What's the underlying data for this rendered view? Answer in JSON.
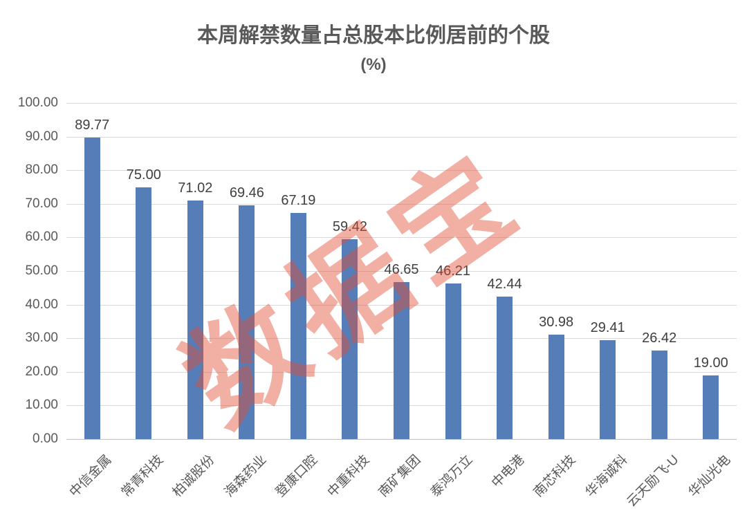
{
  "chart_data": {
    "type": "bar",
    "title": "本周解禁数量占总股本比例居前的个股",
    "subtitle": "(%)",
    "categories": [
      "中信金属",
      "常青科技",
      "柏诚股份",
      "海森药业",
      "登康口腔",
      "中重科技",
      "南矿集团",
      "泰鸿万立",
      "中电港",
      "南芯科技",
      "华海诚科",
      "云天励飞-U",
      "华灿光电"
    ],
    "values": [
      89.77,
      75.0,
      71.02,
      69.46,
      67.19,
      59.42,
      46.65,
      46.21,
      42.44,
      30.98,
      29.41,
      26.42,
      19.0
    ],
    "value_labels": [
      "89.77",
      "75.00",
      "71.02",
      "69.46",
      "67.19",
      "59.42",
      "46.65",
      "46.21",
      "42.44",
      "30.98",
      "29.41",
      "26.42",
      "19.00"
    ],
    "xlabel": "",
    "ylabel": "",
    "ylim": [
      0,
      100
    ],
    "ytick_step": 10,
    "ytick_labels": [
      "0.00",
      "10.00",
      "20.00",
      "30.00",
      "40.00",
      "50.00",
      "60.00",
      "70.00",
      "80.00",
      "90.00",
      "100.00"
    ],
    "grid": true,
    "legend": false,
    "bar_color": "#557DB7",
    "gridline_color": "#d9d9d9",
    "watermark": {
      "text": "数据宝",
      "color_rgba": "rgba(226, 77, 53, 0.45)"
    }
  }
}
